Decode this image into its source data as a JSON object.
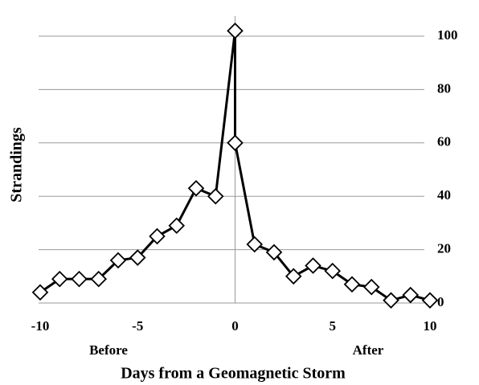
{
  "chart_data": {
    "type": "line",
    "x_label": "Days from a Geomagnetic Storm",
    "y_label": "Strandings",
    "annotations": [
      "Before",
      "After"
    ],
    "x": [
      -10,
      -9,
      -8,
      -7,
      -6,
      -5,
      -4,
      -3,
      -2,
      -1,
      0,
      0,
      1,
      2,
      3,
      4,
      5,
      6,
      7,
      8,
      9,
      10
    ],
    "series": [
      {
        "color": "#000000",
        "values": [
          4,
          9,
          9,
          9,
          16,
          17,
          25,
          29,
          43,
          40,
          102,
          60,
          22,
          19,
          10,
          14,
          12,
          7,
          6,
          1,
          3,
          1
        ]
      }
    ],
    "xlim": [
      -10,
      10
    ],
    "xticks": [
      -10,
      -5,
      0,
      5,
      10
    ],
    "ylim": [
      0,
      100
    ],
    "yticks": [
      0,
      20,
      40,
      60,
      80,
      100
    ],
    "y_axis_side": "right",
    "grid": true
  }
}
